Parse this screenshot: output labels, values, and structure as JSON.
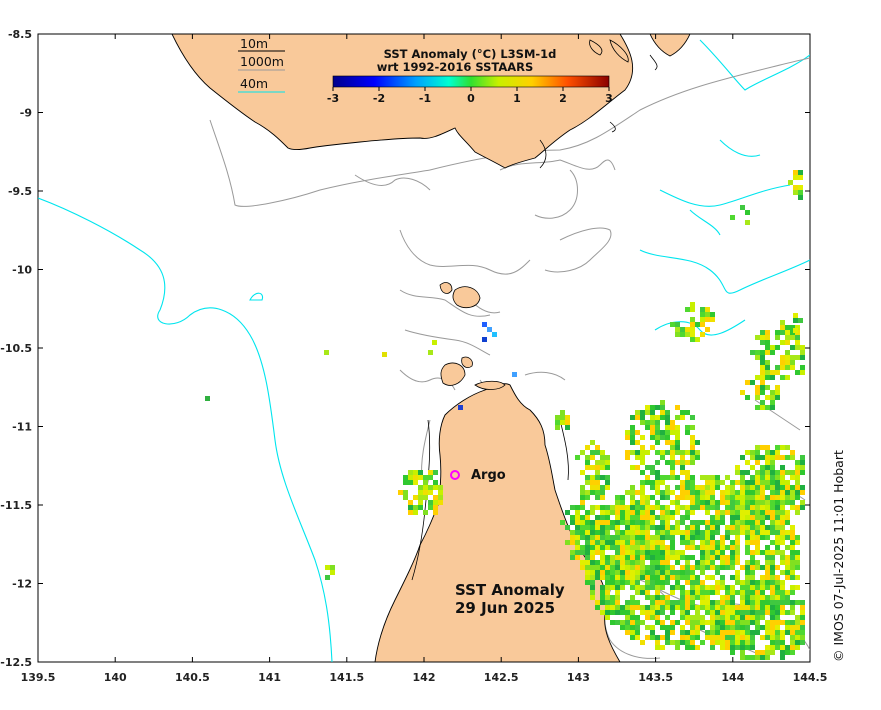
{
  "map": {
    "x_ticks": [
      "139.5",
      "140",
      "140.5",
      "141",
      "141.5",
      "142",
      "142.5",
      "143",
      "143.5",
      "144",
      "144.5"
    ],
    "y_ticks": [
      "-8.5",
      "-9",
      "-9.5",
      "-10",
      "-10.5",
      "-11",
      "-11.5",
      "-12",
      "-12.5"
    ],
    "colors": {
      "land": "#f9c99a",
      "ocean": "#ffffff",
      "contour_10m": "#000000",
      "contour_1000m": "#999999",
      "contour_40m": "#00e5ee",
      "argo_marker": "#ff00ff"
    }
  },
  "legend": {
    "bathy_10m": "10m",
    "bathy_1000m": "1000m",
    "bathy_40m": "40m"
  },
  "colorbar": {
    "title_line1": "SST Anomaly (°C) L3SM-1d",
    "title_line2": "wrt 1992-2016 SSTAARS",
    "ticks": [
      "-3",
      "-2",
      "-1",
      "0",
      "1",
      "2",
      "3"
    ]
  },
  "labels": {
    "argo": "Argo",
    "title_line1": "SST Anomaly",
    "title_line2": "29 Jun 2025",
    "credit": "© IMOS 07-Jul-2025 11:01 Hobart"
  }
}
